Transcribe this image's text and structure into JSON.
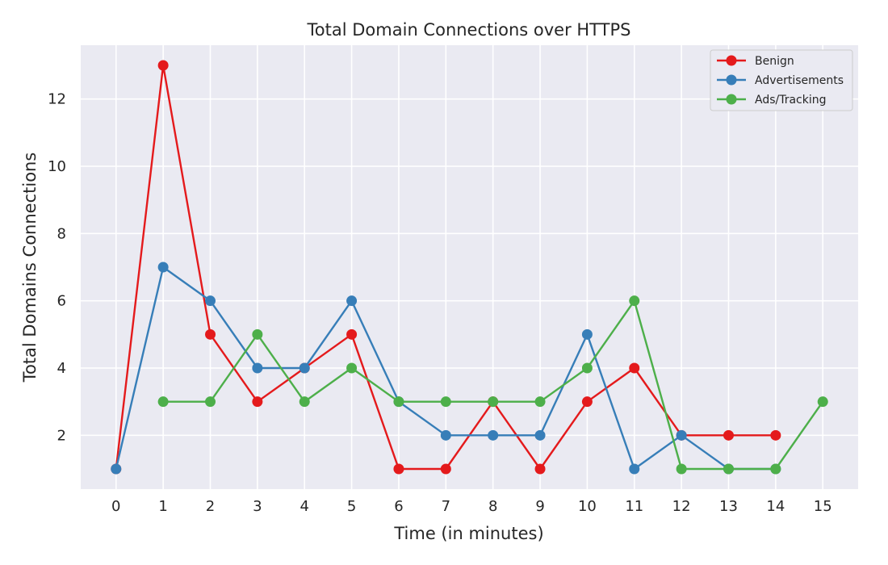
{
  "chart_data": {
    "type": "line",
    "title": "Total Domain Connections over HTTPS",
    "xlabel": "Time (in minutes)",
    "ylabel": "Total Domains Connections",
    "x_ticks": [
      0,
      1,
      2,
      3,
      4,
      5,
      6,
      7,
      8,
      9,
      10,
      11,
      12,
      13,
      14,
      15
    ],
    "y_ticks": [
      2,
      4,
      6,
      8,
      10,
      12
    ],
    "xlim": [
      -0.75,
      15.75
    ],
    "ylim": [
      0.4,
      13.6
    ],
    "grid": true,
    "legend_position": "top-right",
    "series": [
      {
        "name": "Benign",
        "color": "#e41a1c",
        "x": [
          0,
          1,
          2,
          3,
          4,
          5,
          6,
          7,
          8,
          9,
          10,
          11,
          12,
          13,
          14
        ],
        "y": [
          1,
          13,
          5,
          3,
          4,
          5,
          1,
          1,
          3,
          1,
          3,
          4,
          2,
          2,
          2
        ]
      },
      {
        "name": "Advertisements",
        "color": "#377eb8",
        "x": [
          0,
          1,
          2,
          3,
          4,
          5,
          6,
          7,
          8,
          9,
          10,
          11,
          12,
          13,
          14
        ],
        "y": [
          1,
          7,
          6,
          4,
          4,
          6,
          3,
          2,
          2,
          2,
          5,
          1,
          2,
          1,
          1
        ]
      },
      {
        "name": "Ads/Tracking",
        "color": "#4daf4a",
        "x": [
          1,
          2,
          3,
          4,
          5,
          6,
          7,
          8,
          9,
          10,
          11,
          12,
          13,
          14,
          15
        ],
        "y": [
          3,
          3,
          5,
          3,
          4,
          3,
          3,
          3,
          3,
          4,
          6,
          1,
          1,
          1,
          3
        ]
      }
    ]
  }
}
